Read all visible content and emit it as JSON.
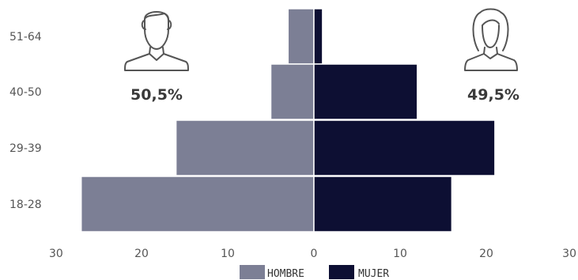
{
  "chart_data": {
    "type": "bar",
    "orientation": "horizontal",
    "layout": "population-pyramid",
    "title": "",
    "xlabel": "",
    "ylabel": "",
    "categories": [
      "51-64",
      "40-50",
      "29-39",
      "18-28"
    ],
    "series": [
      {
        "name": "HOMBRE",
        "values": [
          3,
          5,
          16,
          27
        ],
        "color": "#7c7f95",
        "side": "left"
      },
      {
        "name": "MUJER",
        "values": [
          1,
          12,
          21,
          16
        ],
        "color": "#0d0f33",
        "side": "right"
      }
    ],
    "xlim": [
      -30,
      30
    ],
    "x_ticks": [
      {
        "value": -30,
        "label": "30"
      },
      {
        "value": -20,
        "label": "20"
      },
      {
        "value": -10,
        "label": "10"
      },
      {
        "value": 0,
        "label": "0"
      },
      {
        "value": 10,
        "label": "10"
      },
      {
        "value": 20,
        "label": "20"
      },
      {
        "value": 30,
        "label": "30"
      }
    ],
    "grid": false,
    "legend": {
      "placement": "bottom-center",
      "items": [
        "HOMBRE",
        "MUJER"
      ]
    },
    "annotations": [
      {
        "text": "50,5%",
        "icon": "man-icon",
        "side": "left"
      },
      {
        "text": "49,5%",
        "icon": "woman-icon",
        "side": "right"
      }
    ]
  }
}
